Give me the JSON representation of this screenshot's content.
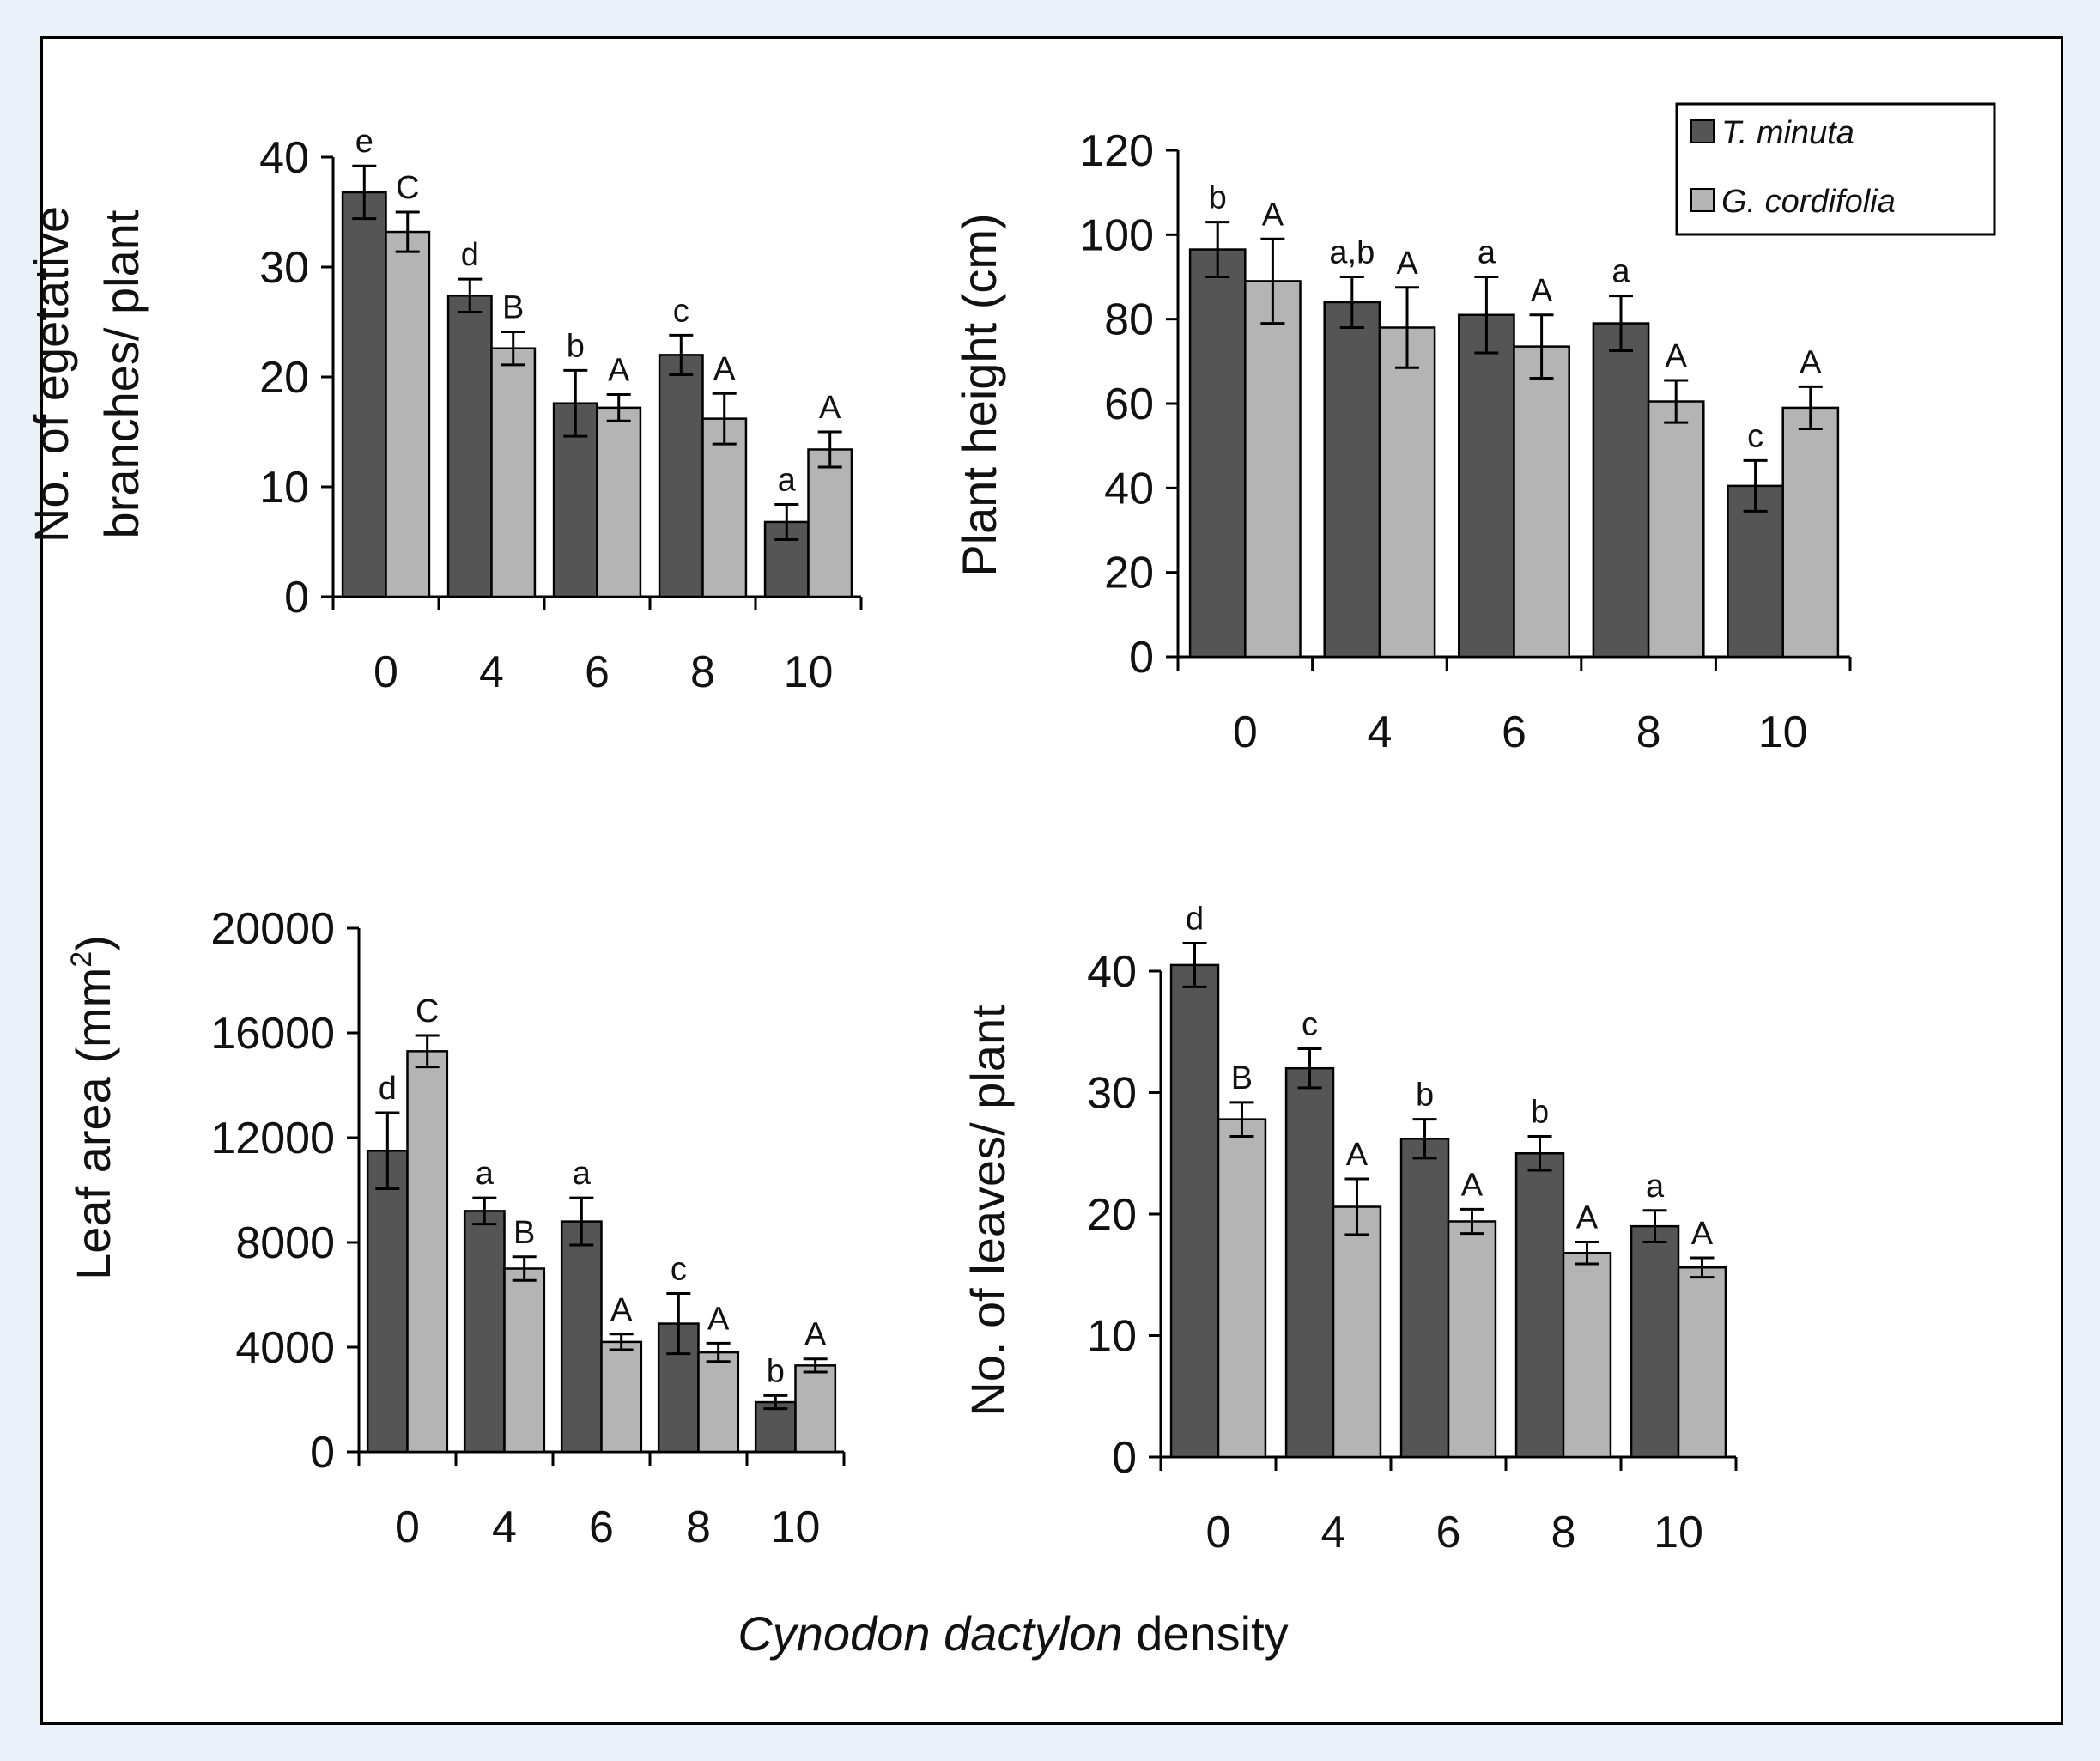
{
  "colors": {
    "series1": "#555555",
    "series2": "#b4b4b4",
    "frame_bg": "#eaf1f8",
    "border": "#000000"
  },
  "legend": {
    "items": [
      {
        "label": "T. minuta",
        "color": "#555555"
      },
      {
        "label": "G. cordifolia",
        "color": "#b4b4b4"
      }
    ]
  },
  "shared_xlabel": {
    "italic": "Cynodon dactylon",
    "rest": " density"
  },
  "chart_data": [
    {
      "type": "bar",
      "title": "",
      "ylabel_lines": [
        "No. of egetative",
        "branches/ plant"
      ],
      "ylabel_sup": "",
      "ylabel_tail": "",
      "categories": [
        "0",
        "4",
        "6",
        "8",
        "10"
      ],
      "ylim": [
        0,
        40
      ],
      "yticks": [
        0,
        10,
        20,
        30,
        40
      ],
      "series": [
        {
          "name": "T. minuta",
          "values": [
            36.8,
            27.4,
            17.6,
            22.0,
            6.8
          ],
          "errors": [
            2.4,
            1.5,
            3.0,
            1.8,
            1.6
          ],
          "labels": [
            "e",
            "d",
            "b",
            "c",
            "a"
          ]
        },
        {
          "name": "G. cordifolia",
          "values": [
            33.2,
            22.6,
            17.2,
            16.2,
            13.4
          ],
          "errors": [
            1.8,
            1.5,
            1.2,
            2.3,
            1.6
          ],
          "labels": [
            "C",
            "B",
            "A",
            "A",
            "A"
          ]
        }
      ]
    },
    {
      "type": "bar",
      "title": "",
      "ylabel_lines": [
        "Plant height (cm)"
      ],
      "ylabel_sup": "",
      "ylabel_tail": "",
      "categories": [
        "0",
        "4",
        "6",
        "8",
        "10"
      ],
      "ylim": [
        0,
        120
      ],
      "yticks": [
        0,
        20,
        40,
        60,
        80,
        100,
        120
      ],
      "series": [
        {
          "name": "T. minuta",
          "values": [
            96.5,
            84.0,
            81.0,
            79.0,
            40.5
          ],
          "errors": [
            6.5,
            6.0,
            9.0,
            6.5,
            6.0
          ],
          "labels": [
            "b",
            "a,b",
            "a",
            "a",
            "c"
          ]
        },
        {
          "name": "G. cordifolia",
          "values": [
            89.0,
            78.0,
            73.5,
            60.5,
            59.0
          ],
          "errors": [
            10.0,
            9.5,
            7.5,
            5.0,
            5.0
          ],
          "labels": [
            "A",
            "A",
            "A",
            "A",
            "A"
          ]
        }
      ]
    },
    {
      "type": "bar",
      "title": "",
      "ylabel_lines": [
        "Leaf area (mm"
      ],
      "ylabel_sup": "2",
      "ylabel_tail": ")",
      "categories": [
        "0",
        "4",
        "6",
        "8",
        "10"
      ],
      "ylim": [
        0,
        20000
      ],
      "yticks": [
        0,
        4000,
        8000,
        12000,
        16000,
        20000
      ],
      "series": [
        {
          "name": "T. minuta",
          "values": [
            11500,
            9200,
            8800,
            4900,
            1900
          ],
          "errors": [
            1450,
            500,
            900,
            1150,
            250
          ],
          "labels": [
            "d",
            "a",
            "a",
            "c",
            "b"
          ]
        },
        {
          "name": "G. cordifolia",
          "values": [
            15300,
            7000,
            4200,
            3800,
            3300
          ],
          "errors": [
            600,
            450,
            300,
            350,
            250
          ],
          "labels": [
            "C",
            "B",
            "A",
            "A",
            "A"
          ]
        }
      ]
    },
    {
      "type": "bar",
      "title": "",
      "ylabel_lines": [
        "No. of leaves/ plant"
      ],
      "ylabel_sup": "",
      "ylabel_tail": "",
      "categories": [
        "0",
        "4",
        "6",
        "8",
        "10"
      ],
      "ylim": [
        0,
        40
      ],
      "yticks": [
        0,
        10,
        20,
        30,
        40
      ],
      "series": [
        {
          "name": "T. minuta",
          "values": [
            40.5,
            32.0,
            26.2,
            25.0,
            19.0
          ],
          "errors": [
            1.8,
            1.6,
            1.6,
            1.4,
            1.3
          ],
          "labels": [
            "d",
            "c",
            "b",
            "b",
            "a"
          ]
        },
        {
          "name": "G. cordifolia",
          "values": [
            27.8,
            20.6,
            19.4,
            16.8,
            15.6
          ],
          "errors": [
            1.4,
            2.3,
            1.0,
            0.9,
            0.8
          ],
          "labels": [
            "B",
            "A",
            "A",
            "A",
            "A"
          ]
        }
      ]
    }
  ]
}
